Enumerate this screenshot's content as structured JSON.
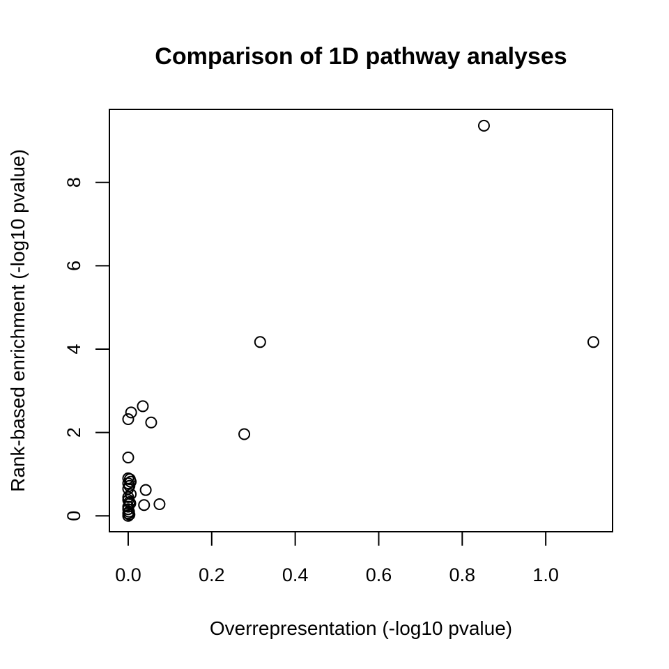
{
  "chart_data": {
    "type": "scatter",
    "title": "Comparison of 1D pathway analyses",
    "xlabel": "Overrepresentation (-log10 pvalue)",
    "ylabel": "Rank-based enrichment (-log10 pvalue)",
    "xlim": [
      -0.045,
      1.16
    ],
    "ylim": [
      -0.38,
      9.75
    ],
    "xticks": [
      0.0,
      0.2,
      0.4,
      0.6,
      0.8,
      1.0
    ],
    "xtick_labels": [
      "0.0",
      "0.2",
      "0.4",
      "0.6",
      "0.8",
      "1.0"
    ],
    "yticks": [
      0,
      2,
      4,
      6,
      8
    ],
    "ytick_labels": [
      "0",
      "2",
      "4",
      "6",
      "8"
    ],
    "grid": false,
    "legend": "none",
    "marker": "open-circle",
    "points": [
      {
        "x": 0.852,
        "y": 9.36
      },
      {
        "x": 1.114,
        "y": 4.17
      },
      {
        "x": 0.316,
        "y": 4.17
      },
      {
        "x": 0.278,
        "y": 1.96
      },
      {
        "x": 0.035,
        "y": 2.63
      },
      {
        "x": 0.007,
        "y": 2.48
      },
      {
        "x": 0.0,
        "y": 2.32
      },
      {
        "x": 0.055,
        "y": 2.24
      },
      {
        "x": 0.0,
        "y": 1.4
      },
      {
        "x": 0.0,
        "y": 0.9
      },
      {
        "x": 0.004,
        "y": 0.88
      },
      {
        "x": 0.006,
        "y": 0.82
      },
      {
        "x": 0.0,
        "y": 0.78
      },
      {
        "x": 0.003,
        "y": 0.72
      },
      {
        "x": 0.0,
        "y": 0.65
      },
      {
        "x": 0.042,
        "y": 0.62
      },
      {
        "x": 0.006,
        "y": 0.52
      },
      {
        "x": 0.0,
        "y": 0.45
      },
      {
        "x": 0.0,
        "y": 0.38
      },
      {
        "x": 0.003,
        "y": 0.33
      },
      {
        "x": 0.005,
        "y": 0.3
      },
      {
        "x": 0.075,
        "y": 0.28
      },
      {
        "x": 0.038,
        "y": 0.26
      },
      {
        "x": 0.0,
        "y": 0.22
      },
      {
        "x": 0.0,
        "y": 0.16
      },
      {
        "x": 0.002,
        "y": 0.1
      },
      {
        "x": 0.0,
        "y": 0.06
      },
      {
        "x": 0.003,
        "y": 0.03
      },
      {
        "x": 0.0,
        "y": 0.0
      }
    ]
  }
}
